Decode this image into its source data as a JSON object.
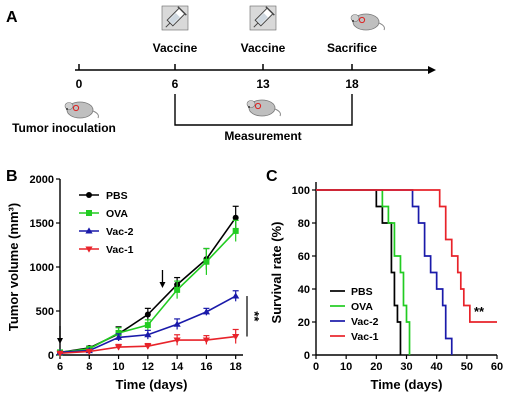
{
  "panel_a": {
    "letter": "A",
    "timeline": [
      {
        "day": "0",
        "label": "Tumor inoculation"
      },
      {
        "day": "6",
        "label": "Vaccine"
      },
      {
        "day": "13",
        "label": "Vaccine"
      },
      {
        "day": "18",
        "label": "Sacrifice"
      }
    ],
    "measurement_label": "Measurement"
  },
  "panel_b": {
    "letter": "B"
  },
  "panel_c": {
    "letter": "C"
  },
  "chart_data": [
    {
      "type": "line",
      "ylabel": "Tumor volume (mm³)",
      "xlabel": "Time (days)",
      "x": [
        6,
        8,
        10,
        12,
        14,
        16,
        18
      ],
      "xlim": [
        6,
        18.5
      ],
      "ylim": [
        0,
        2000
      ],
      "xticks": [
        6,
        8,
        10,
        12,
        14,
        16,
        18
      ],
      "yticks": [
        0,
        500,
        1000,
        1500,
        2000
      ],
      "arrows_at_days": [
        6,
        13
      ],
      "significance": "**",
      "legend_position": "top-left",
      "series": [
        {
          "name": "PBS",
          "color": "#000000",
          "marker": "circle",
          "values": [
            30,
            80,
            240,
            460,
            800,
            1090,
            1560
          ],
          "errors": [
            10,
            20,
            80,
            70,
            80,
            120,
            130
          ]
        },
        {
          "name": "OVA",
          "color": "#22cc22",
          "marker": "square",
          "values": [
            30,
            70,
            250,
            340,
            740,
            1060,
            1410
          ],
          "errors": [
            10,
            20,
            60,
            60,
            100,
            150,
            120
          ]
        },
        {
          "name": "Vac-2",
          "color": "#1a1aaa",
          "marker": "triangle",
          "values": [
            30,
            50,
            200,
            230,
            350,
            490,
            670
          ],
          "errors": [
            8,
            15,
            40,
            50,
            60,
            40,
            60
          ]
        },
        {
          "name": "Vac-1",
          "color": "#e8232a",
          "marker": "triangle-down",
          "values": [
            20,
            40,
            90,
            100,
            170,
            170,
            210
          ],
          "errors": [
            8,
            10,
            30,
            30,
            60,
            50,
            80
          ]
        }
      ]
    },
    {
      "type": "line",
      "ylabel": "Survival rate (%)",
      "xlabel": "Time (days)",
      "xlim": [
        0,
        60
      ],
      "ylim": [
        0,
        100
      ],
      "xticks": [
        0,
        10,
        20,
        30,
        40,
        50,
        60
      ],
      "yticks": [
        0,
        20,
        40,
        60,
        80,
        100
      ],
      "significance": "**",
      "legend_position": "bottom-left",
      "series": [
        {
          "name": "PBS",
          "color": "#000000",
          "steps": [
            [
              0,
              100
            ],
            [
              20,
              100
            ],
            [
              20,
              90
            ],
            [
              22,
              90
            ],
            [
              22,
              80
            ],
            [
              25,
              80
            ],
            [
              25,
              50
            ],
            [
              26,
              50
            ],
            [
              26,
              30
            ],
            [
              27,
              30
            ],
            [
              27,
              20
            ],
            [
              28,
              20
            ],
            [
              28,
              0
            ]
          ]
        },
        {
          "name": "OVA",
          "color": "#22cc22",
          "steps": [
            [
              0,
              100
            ],
            [
              22,
              100
            ],
            [
              22,
              90
            ],
            [
              24,
              90
            ],
            [
              24,
              80
            ],
            [
              26,
              80
            ],
            [
              26,
              60
            ],
            [
              28,
              60
            ],
            [
              28,
              50
            ],
            [
              29,
              50
            ],
            [
              29,
              30
            ],
            [
              30,
              30
            ],
            [
              30,
              20
            ],
            [
              31,
              20
            ],
            [
              31,
              0
            ]
          ]
        },
        {
          "name": "Vac-2",
          "color": "#1a1aaa",
          "steps": [
            [
              0,
              100
            ],
            [
              32,
              100
            ],
            [
              32,
              90
            ],
            [
              34,
              90
            ],
            [
              34,
              80
            ],
            [
              36,
              80
            ],
            [
              36,
              60
            ],
            [
              38,
              60
            ],
            [
              38,
              50
            ],
            [
              40,
              50
            ],
            [
              40,
              40
            ],
            [
              42,
              40
            ],
            [
              42,
              30
            ],
            [
              43,
              30
            ],
            [
              43,
              10
            ],
            [
              45,
              10
            ],
            [
              45,
              0
            ]
          ]
        },
        {
          "name": "Vac-1",
          "color": "#e8232a",
          "steps": [
            [
              0,
              100
            ],
            [
              41,
              100
            ],
            [
              41,
              90
            ],
            [
              43,
              90
            ],
            [
              43,
              70
            ],
            [
              45,
              70
            ],
            [
              45,
              60
            ],
            [
              47,
              60
            ],
            [
              47,
              50
            ],
            [
              48,
              50
            ],
            [
              48,
              40
            ],
            [
              49,
              40
            ],
            [
              49,
              30
            ],
            [
              51,
              30
            ],
            [
              51,
              20
            ],
            [
              60,
              20
            ]
          ]
        }
      ]
    }
  ]
}
